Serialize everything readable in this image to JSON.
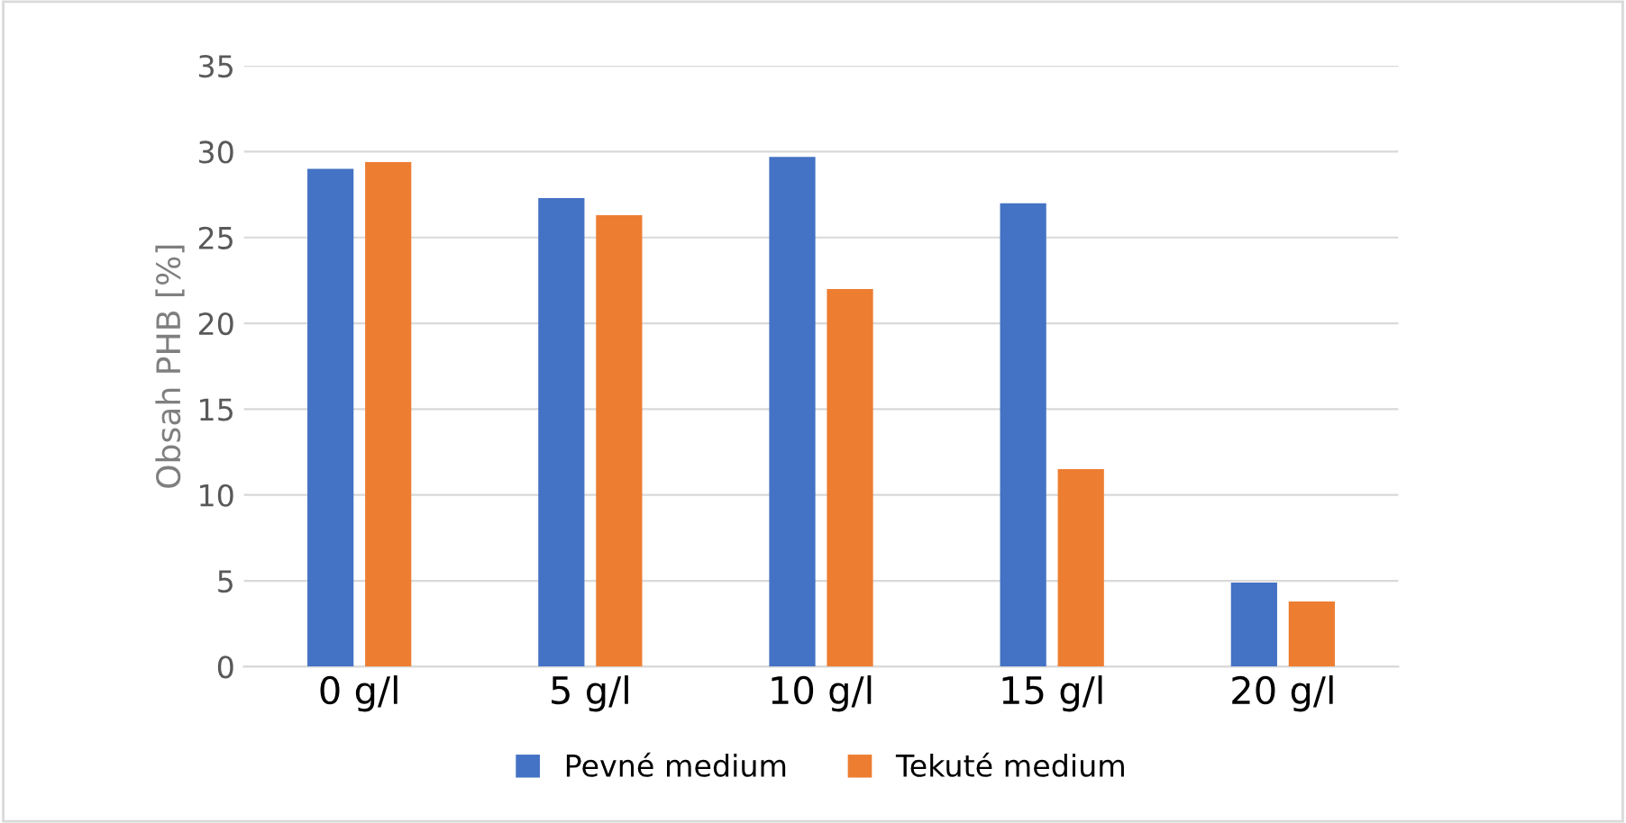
{
  "chart_data": {
    "type": "bar",
    "ylabel": "Obsah PHB [%]",
    "categories": [
      "0 g/l",
      "5 g/l",
      "10 g/l",
      "15 g/l",
      "20 g/l"
    ],
    "series": [
      {
        "name": "Pevné medium",
        "color": "#4472c4",
        "values": [
          29.0,
          27.3,
          29.7,
          27.0,
          4.9
        ]
      },
      {
        "name": "Tekuté medium",
        "color": "#ed7d31",
        "values": [
          29.4,
          26.3,
          22.0,
          11.5,
          3.8
        ]
      }
    ],
    "ylim": [
      0,
      35
    ],
    "yticks": [
      0,
      5,
      10,
      15,
      20,
      25,
      30,
      35
    ],
    "grid": "y",
    "legend": "bottom"
  }
}
